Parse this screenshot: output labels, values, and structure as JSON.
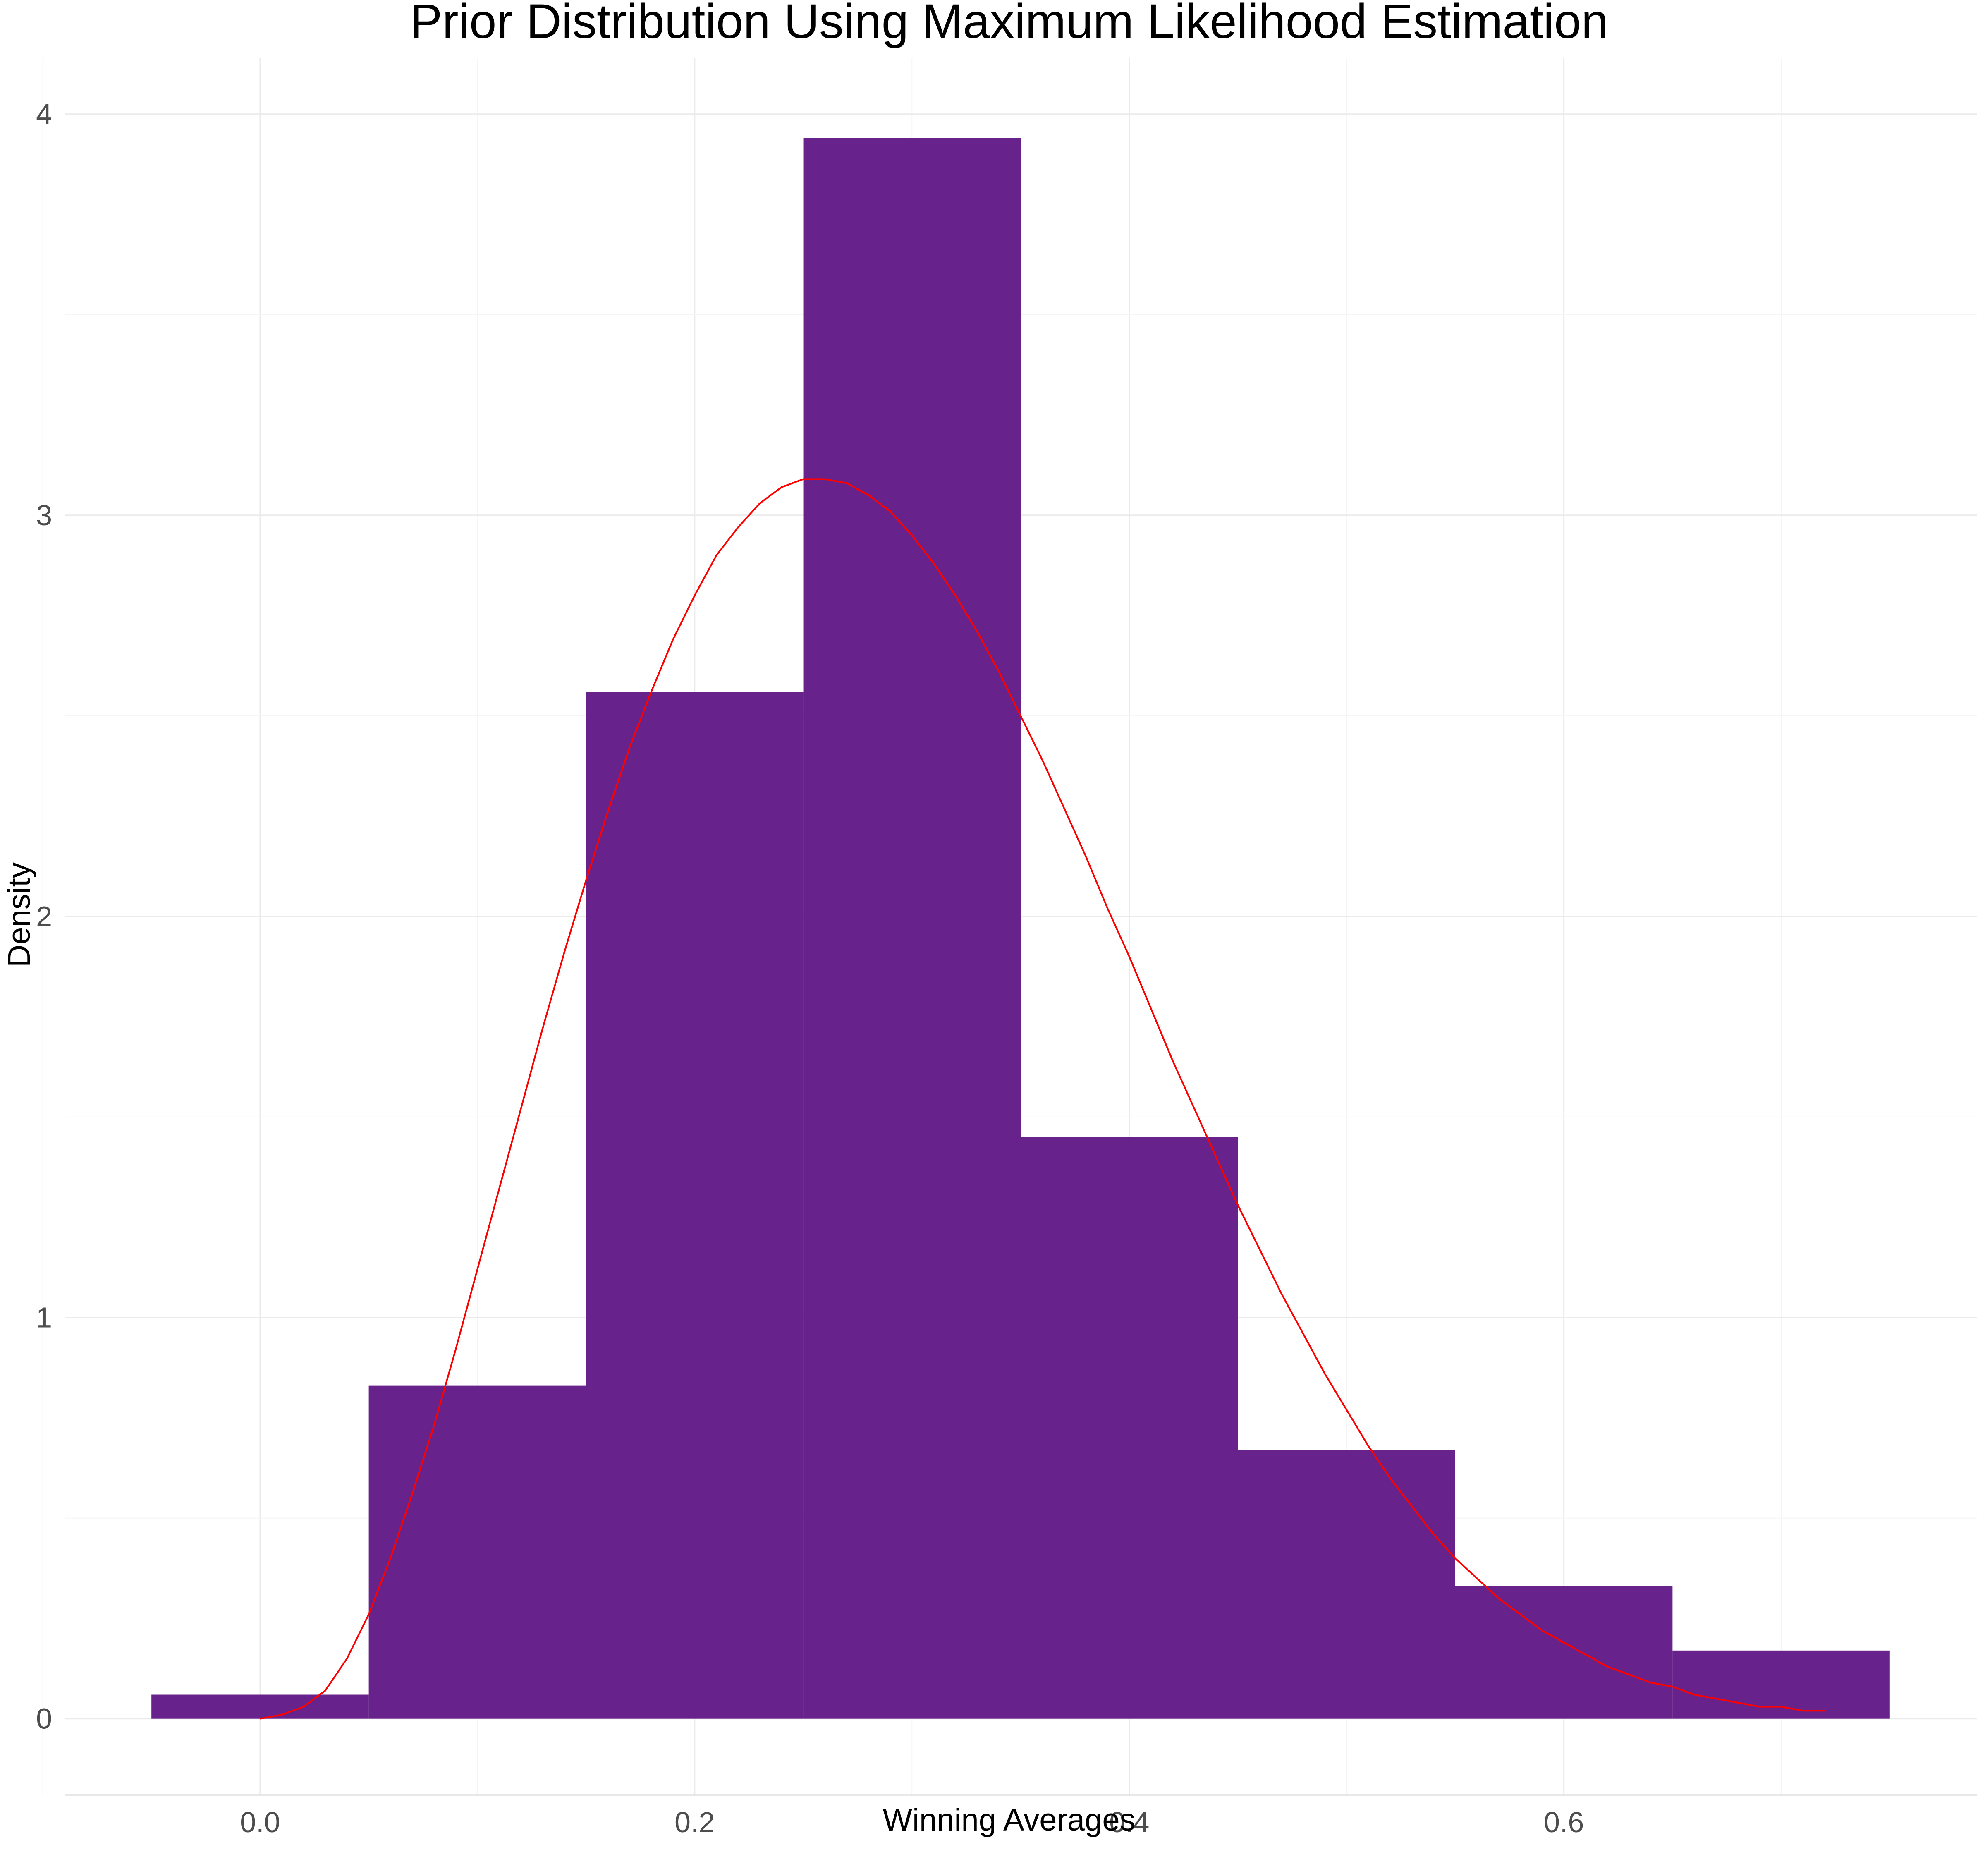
{
  "chart_data": {
    "type": "bar",
    "title": "Prior Distribution Using Maximum Likelihood Estimation",
    "xlabel": "Winning Averages",
    "ylabel": "Density",
    "xlim": [
      -0.09,
      0.79
    ],
    "ylim": [
      -0.19,
      4.14
    ],
    "x_ticks": [
      0.0,
      0.2,
      0.4,
      0.6
    ],
    "x_tick_labels": [
      "0.0",
      "0.2",
      "0.4",
      "0.6"
    ],
    "y_ticks": [
      0,
      1,
      2,
      3,
      4
    ],
    "y_tick_labels": [
      "0",
      "1",
      "2",
      "3",
      "4"
    ],
    "grid": true,
    "bar_color": "#68228b",
    "curve_color": "#ff0000",
    "histogram": {
      "bin_edges": [
        -0.05,
        0.05,
        0.15,
        0.25,
        0.35,
        0.45,
        0.55,
        0.65,
        0.75
      ],
      "values": [
        0.06,
        0.83,
        2.56,
        3.94,
        1.45,
        0.67,
        0.33,
        0.17
      ]
    },
    "density_curve": {
      "x": [
        0.0,
        0.01,
        0.02,
        0.03,
        0.04,
        0.05,
        0.06,
        0.07,
        0.08,
        0.09,
        0.1,
        0.11,
        0.12,
        0.13,
        0.14,
        0.15,
        0.16,
        0.17,
        0.18,
        0.19,
        0.2,
        0.21,
        0.22,
        0.23,
        0.24,
        0.25,
        0.26,
        0.27,
        0.28,
        0.29,
        0.3,
        0.31,
        0.32,
        0.33,
        0.34,
        0.35,
        0.36,
        0.37,
        0.38,
        0.39,
        0.4,
        0.41,
        0.42,
        0.43,
        0.44,
        0.45,
        0.46,
        0.47,
        0.48,
        0.49,
        0.5,
        0.51,
        0.52,
        0.53,
        0.54,
        0.55,
        0.56,
        0.57,
        0.58,
        0.59,
        0.6,
        0.61,
        0.62,
        0.63,
        0.64,
        0.65,
        0.66,
        0.67,
        0.68,
        0.69,
        0.7,
        0.71,
        0.72
      ],
      "y": [
        0.0,
        0.01,
        0.03,
        0.07,
        0.15,
        0.26,
        0.4,
        0.56,
        0.73,
        0.92,
        1.12,
        1.32,
        1.52,
        1.72,
        1.91,
        2.09,
        2.26,
        2.42,
        2.56,
        2.69,
        2.8,
        2.9,
        2.97,
        3.03,
        3.07,
        3.09,
        3.09,
        3.08,
        3.05,
        3.01,
        2.95,
        2.88,
        2.8,
        2.71,
        2.61,
        2.5,
        2.39,
        2.27,
        2.15,
        2.02,
        1.9,
        1.77,
        1.64,
        1.52,
        1.4,
        1.28,
        1.17,
        1.06,
        0.96,
        0.86,
        0.77,
        0.68,
        0.6,
        0.53,
        0.46,
        0.4,
        0.35,
        0.3,
        0.26,
        0.22,
        0.19,
        0.16,
        0.13,
        0.11,
        0.09,
        0.08,
        0.06,
        0.05,
        0.04,
        0.03,
        0.03,
        0.02,
        0.02
      ]
    }
  }
}
